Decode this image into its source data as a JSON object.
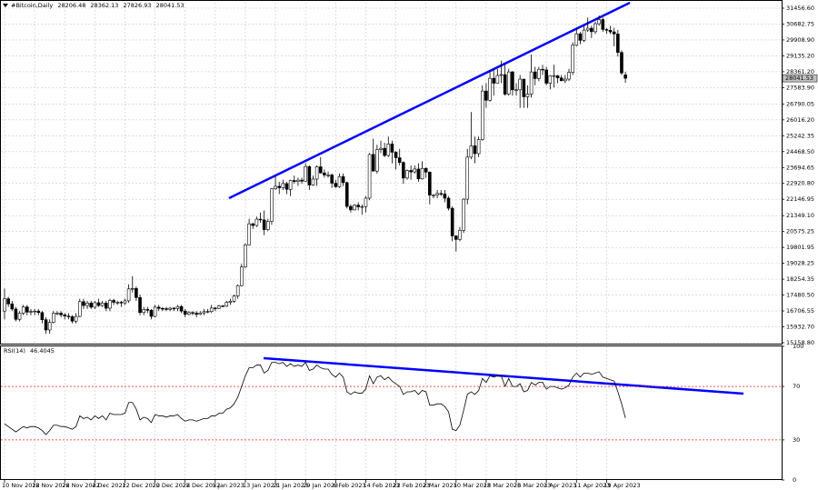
{
  "chart_data": {
    "type": "candlestick",
    "title": "#Bitcoin,Daily",
    "categories": [
      "10 Nov 2022",
      null,
      null,
      null,
      null,
      null,
      null,
      null,
      "18 Nov 2022",
      null,
      null,
      null,
      null,
      null,
      null,
      null,
      "26 Nov 2022",
      null,
      null,
      null,
      null,
      null,
      null,
      null,
      "4 Dec 2022",
      null,
      null,
      null,
      null,
      null,
      null,
      null,
      "12 Dec 2022",
      null,
      null,
      null,
      null,
      null,
      null,
      null,
      "20 Dec 2022",
      null,
      null,
      null,
      null,
      null,
      null,
      null,
      "28 Dec 2022",
      null,
      null,
      null,
      null,
      null,
      null,
      null,
      "5 Jan 2023",
      null,
      null,
      null,
      null,
      null,
      null,
      null,
      "13 Jan 2023",
      null,
      null,
      null,
      null,
      null,
      null,
      null,
      "21 Jan 2023",
      null,
      null,
      null,
      null,
      null,
      null,
      null,
      "29 Jan 2023",
      null,
      null,
      null,
      null,
      null,
      null,
      null,
      "6 Feb 2023",
      null,
      null,
      null,
      null,
      null,
      null,
      null,
      "14 Feb 2023",
      null,
      null,
      null,
      null,
      null,
      null,
      null,
      "22 Feb 2023",
      null,
      null,
      null,
      null,
      null,
      null,
      null,
      "2 Mar 2023",
      null,
      null,
      null,
      null,
      null,
      null,
      null,
      "10 Mar 2023",
      null,
      null,
      null,
      null,
      null,
      null,
      null,
      "18 Mar 2023",
      null,
      null,
      null,
      null,
      null,
      null,
      null,
      "26 Mar 2023",
      null,
      null,
      null,
      null,
      null,
      null,
      null,
      "3 Apr 2023",
      null,
      null,
      null,
      null,
      null,
      null,
      null,
      "11 Apr 2023",
      null,
      null,
      null,
      null,
      null,
      null,
      null,
      "19 Apr 2023",
      null,
      null,
      null,
      null,
      null
    ],
    "open": [
      16700,
      17300,
      17050,
      16800,
      16300,
      16600,
      16900,
      16650,
      16680,
      16700,
      16630,
      16280,
      15780,
      16150,
      16600,
      16600,
      16520,
      16460,
      16430,
      16210,
      16440,
      17160,
      16970,
      17090,
      16890,
      17110,
      16970,
      17090,
      16840,
      17220,
      17130,
      17130,
      17100,
      17200,
      17780,
      17800,
      17360,
      16630,
      16780,
      16740,
      16440,
      16890,
      16830,
      16820,
      16780,
      16840,
      16830,
      16920,
      16700,
      16540,
      16630,
      16600,
      16540,
      16610,
      16670,
      16680,
      16850,
      16830,
      16950,
      16940,
      17120,
      17180,
      17440,
      17940,
      18850,
      19930,
      20950,
      20870,
      21180,
      21140,
      20670,
      21070,
      22660,
      22780,
      22710,
      22910,
      22630,
      23060,
      23010,
      23080,
      23030,
      23740,
      22840,
      23130,
      23730,
      23430,
      23330,
      23330,
      22930,
      22760,
      23250,
      22960,
      21800,
      21630,
      21860,
      21780,
      21790,
      22200,
      24330,
      23520,
      24570,
      24630,
      24280,
      24840,
      24440,
      24170,
      23940,
      23180,
      23550,
      23480,
      23620,
      23140,
      23650,
      23470,
      22350,
      22350,
      22430,
      22410,
      22200,
      21710,
      20360,
      20190,
      20630,
      22150,
      24200,
      24750,
      24370,
      25050,
      27420,
      26970,
      28040,
      27800,
      28180,
      28220,
      27270,
      28350,
      27480,
      27480,
      28000,
      27140,
      27270,
      28350,
      28030,
      28480,
      28450,
      27800,
      28170,
      28170,
      28060,
      27920,
      28000,
      28330,
      29650,
      30210,
      29890,
      30390,
      30480,
      30310,
      30700,
      30900,
      30420,
      30380,
      30300,
      30200,
      29300,
      28206.48
    ],
    "high": [
      17800,
      17400,
      17200,
      16900,
      16700,
      17000,
      17000,
      16800,
      16800,
      16800,
      16700,
      16400,
      16300,
      16700,
      16700,
      16700,
      16600,
      16600,
      16500,
      16600,
      17300,
      17300,
      17200,
      17200,
      17200,
      17300,
      17200,
      17200,
      17300,
      17300,
      17200,
      17200,
      17300,
      18000,
      18400,
      17900,
      17500,
      16900,
      16900,
      16800,
      17000,
      17000,
      16900,
      16900,
      16900,
      16900,
      17000,
      17000,
      16800,
      16700,
      16700,
      16700,
      16700,
      16800,
      16800,
      17000,
      16900,
      17000,
      17000,
      17200,
      17300,
      17500,
      18000,
      19000,
      20000,
      21200,
      21000,
      21300,
      21500,
      21600,
      21200,
      22700,
      23300,
      23000,
      23100,
      23000,
      23100,
      23300,
      23200,
      23200,
      23900,
      23800,
      23300,
      23800,
      24200,
      23600,
      23500,
      23400,
      23100,
      23400,
      23400,
      23000,
      21900,
      21900,
      22000,
      21900,
      22300,
      24400,
      25100,
      24800,
      25000,
      24900,
      25200,
      25000,
      24500,
      24600,
      24000,
      23600,
      23800,
      23800,
      23900,
      24000,
      23700,
      23500,
      22400,
      22600,
      22600,
      22600,
      22300,
      21800,
      20400,
      20800,
      22200,
      24600,
      26400,
      25200,
      25200,
      27700,
      27800,
      28400,
      28500,
      28500,
      28900,
      28700,
      28500,
      28400,
      27800,
      28200,
      28000,
      27700,
      29200,
      28600,
      28600,
      28700,
      28600,
      28200,
      28700,
      28200,
      28200,
      28200,
      28500,
      29800,
      30500,
      30300,
      30600,
      31000,
      30600,
      30800,
      31100,
      31000,
      30500,
      30600,
      30500,
      30400,
      29400,
      28362.13
    ],
    "low": [
      16300,
      16900,
      16700,
      16200,
      16200,
      16500,
      16500,
      16500,
      16500,
      16500,
      16100,
      15600,
      15600,
      16100,
      16500,
      16400,
      16300,
      16300,
      16100,
      16100,
      16400,
      16800,
      16800,
      16800,
      16800,
      16900,
      16900,
      16700,
      16700,
      17000,
      17000,
      16900,
      17000,
      17100,
      17600,
      17200,
      16500,
      16500,
      16600,
      16300,
      16400,
      16700,
      16700,
      16700,
      16700,
      16700,
      16700,
      16600,
      16400,
      16500,
      16500,
      16400,
      16500,
      16500,
      16600,
      16600,
      16700,
      16800,
      16900,
      16900,
      17000,
      17100,
      17300,
      17900,
      18800,
      19900,
      20700,
      20800,
      21000,
      20400,
      20600,
      20900,
      22600,
      22400,
      22600,
      22400,
      22300,
      22900,
      22800,
      22900,
      23000,
      22600,
      22800,
      22800,
      23400,
      23200,
      23200,
      22700,
      22700,
      22700,
      22800,
      21700,
      21500,
      21600,
      21600,
      21400,
      21500,
      22100,
      23500,
      23400,
      24400,
      24200,
      24200,
      23900,
      23600,
      23800,
      22900,
      23100,
      23100,
      23400,
      23000,
      23100,
      23200,
      21900,
      22200,
      22200,
      22300,
      22000,
      21600,
      20100,
      19600,
      20100,
      20500,
      21900,
      24100,
      23900,
      24200,
      25000,
      26600,
      26900,
      27200,
      27800,
      27800,
      27200,
      27200,
      27200,
      27200,
      26600,
      26600,
      26600,
      27100,
      27700,
      27900,
      28200,
      27700,
      27500,
      27600,
      27800,
      27900,
      27800,
      27900,
      28200,
      29600,
      29700,
      29800,
      30300,
      30000,
      30200,
      30600,
      30300,
      30200,
      30200,
      29600,
      29100,
      28200,
      27826.93
    ],
    "close": [
      17300,
      17050,
      16800,
      16300,
      16600,
      16900,
      16650,
      16680,
      16700,
      16630,
      16280,
      15780,
      16150,
      16600,
      16600,
      16520,
      16460,
      16430,
      16210,
      16440,
      17160,
      16970,
      17090,
      16890,
      17110,
      16970,
      17090,
      16840,
      17220,
      17130,
      17130,
      17100,
      17200,
      17780,
      17800,
      17360,
      16630,
      16780,
      16740,
      16440,
      16890,
      16830,
      16820,
      16780,
      16840,
      16830,
      16920,
      16700,
      16540,
      16630,
      16600,
      16540,
      16610,
      16670,
      16680,
      16850,
      16830,
      16950,
      16940,
      17120,
      17180,
      17440,
      17940,
      18850,
      19930,
      20950,
      20870,
      21180,
      21140,
      20670,
      21070,
      22660,
      22780,
      22710,
      22910,
      22630,
      23060,
      23010,
      23080,
      23030,
      23740,
      22840,
      23130,
      23730,
      23430,
      23330,
      23330,
      22930,
      22760,
      23250,
      22960,
      21800,
      21630,
      21860,
      21780,
      21790,
      22200,
      24330,
      23520,
      24570,
      24630,
      24280,
      24840,
      24440,
      24170,
      23940,
      23180,
      23550,
      23480,
      23620,
      23140,
      23650,
      23470,
      22350,
      22350,
      22430,
      22410,
      22200,
      21710,
      20360,
      20190,
      20630,
      22150,
      24200,
      24750,
      24370,
      25050,
      27420,
      26970,
      28040,
      27800,
      28180,
      28220,
      27270,
      28350,
      27480,
      27480,
      28000,
      27140,
      27270,
      28350,
      28030,
      28480,
      28450,
      27800,
      28170,
      28170,
      28060,
      27920,
      28000,
      28330,
      29650,
      30210,
      29890,
      30390,
      30480,
      30310,
      30700,
      30900,
      30420,
      30380,
      30300,
      30200,
      29300,
      28300,
      28041.53
    ],
    "up_color": "#ffffff",
    "down_color": "#000000",
    "outline_color": "#000000",
    "ylim": [
      15114,
      31722
    ],
    "yticks": [
      {
        "value": 31456.6,
        "label": "31456.60"
      },
      30682.75,
      {
        "value": 29908.9,
        "label": "29908.90"
      },
      {
        "value": 29135.2,
        "label": "29135.20"
      },
      {
        "value": 28361.2,
        "label": "28361.20"
      },
      {
        "value": 27583.9,
        "label": "27583.90"
      },
      26790.05,
      {
        "value": 26016.2,
        "label": "26016.20"
      },
      25242.35,
      {
        "value": 24468.5,
        "label": "24468.50"
      },
      23694.65,
      {
        "value": 22920.8,
        "label": "22920.80"
      },
      22146.95,
      {
        "value": 21349.1,
        "label": "21349.10"
      },
      20575.25,
      19801.95,
      19028.25,
      18254.35,
      {
        "value": 17480.5,
        "label": "17480.50"
      },
      16706.55,
      {
        "value": 15932.7,
        "label": "15932.70"
      },
      {
        "value": 15158.8,
        "label": "15158.80"
      }
    ],
    "grid": true,
    "indicator": {
      "type": "line",
      "title": "RSI(14)",
      "color": "#000000",
      "values": [
        42,
        40,
        38,
        36,
        38,
        40,
        39,
        40,
        40,
        39,
        37,
        34,
        37,
        41,
        41,
        40,
        40,
        39,
        38,
        40,
        48,
        46,
        47,
        45,
        48,
        46,
        48,
        45,
        50,
        49,
        49,
        49,
        50,
        58,
        58,
        53,
        45,
        47,
        46,
        43,
        49,
        48,
        48,
        47,
        48,
        48,
        49,
        46,
        44,
        45,
        45,
        44,
        45,
        46,
        46,
        48,
        48,
        50,
        50,
        53,
        54,
        57,
        62,
        70,
        78,
        84,
        84,
        86,
        86,
        80,
        82,
        88,
        88,
        87,
        88,
        85,
        87,
        85,
        86,
        85,
        88,
        82,
        83,
        86,
        84,
        83,
        83,
        79,
        77,
        80,
        77,
        66,
        64,
        66,
        65,
        65,
        68,
        78,
        72,
        77,
        78,
        75,
        77,
        74,
        72,
        70,
        64,
        66,
        66,
        67,
        64,
        67,
        66,
        56,
        56,
        57,
        57,
        55,
        51,
        38,
        37,
        41,
        52,
        64,
        66,
        64,
        67,
        76,
        73,
        78,
        77,
        78,
        78,
        70,
        76,
        70,
        70,
        72,
        66,
        67,
        73,
        71,
        73,
        73,
        68,
        70,
        70,
        69,
        68,
        69,
        71,
        77,
        80,
        77,
        80,
        80,
        79,
        80,
        81,
        77,
        76,
        75,
        74,
        66,
        57,
        46.4045
      ],
      "ylim": [
        0,
        100
      ],
      "yticks": [
        100,
        70,
        30,
        0
      ],
      "levels": [
        70,
        30
      ],
      "level_color": "#ee2222"
    }
  }
}
